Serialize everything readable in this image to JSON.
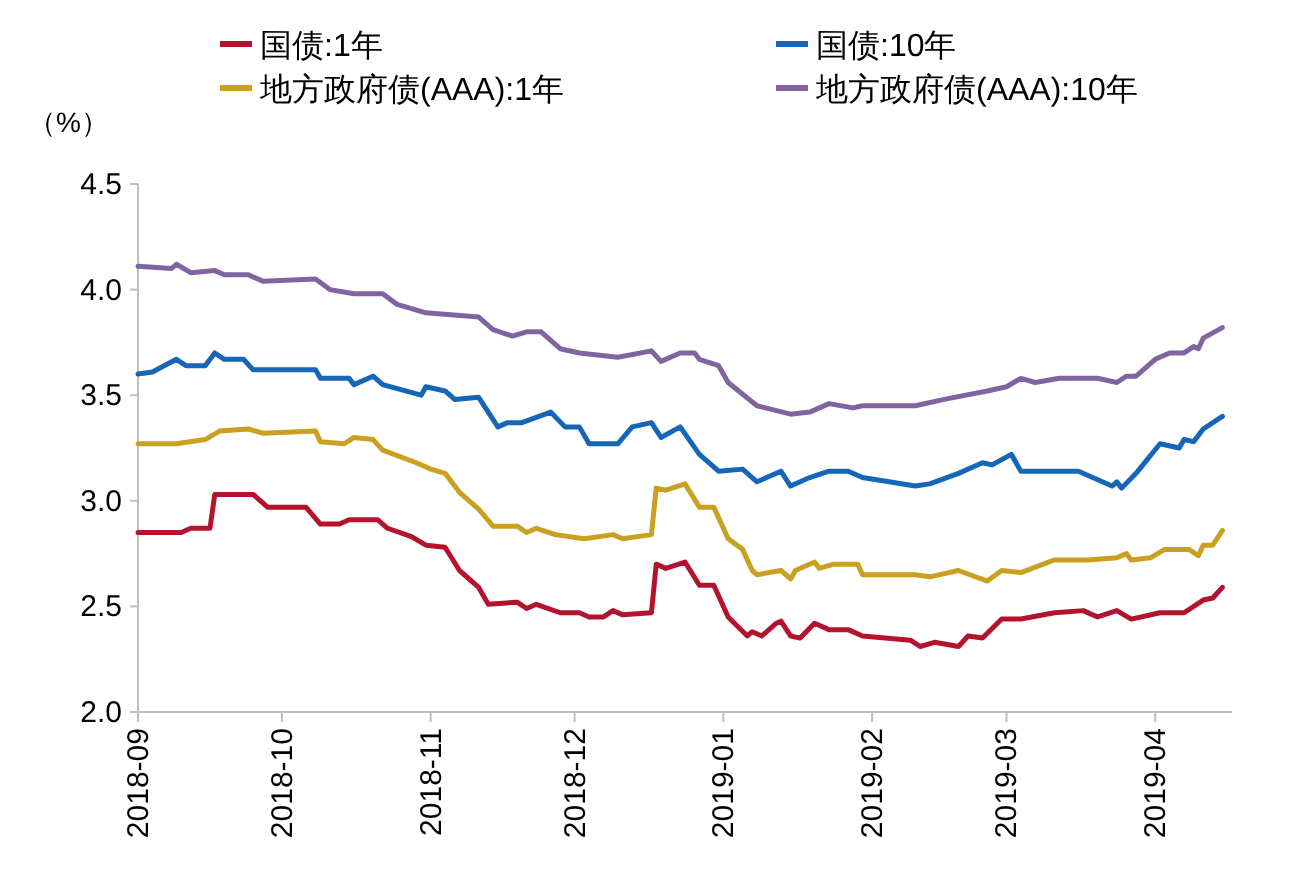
{
  "chart_data": {
    "type": "line",
    "ylabel": "（%）",
    "legend": "top",
    "grid": false,
    "marker": "none",
    "line_style": "solid",
    "xlim": [
      "2018-09-01",
      "2019-04-17"
    ],
    "xticks": [
      "2018-09",
      "2018-10",
      "2018-11",
      "2018-12",
      "2019-01",
      "2019-02",
      "2019-03",
      "2019-04"
    ],
    "ylim": [
      2.0,
      4.5
    ],
    "yticks": [
      {
        "value": 2.0,
        "label": "2.0"
      },
      {
        "value": 2.5,
        "label": "2.5"
      },
      {
        "value": 3.0,
        "label": "3.0"
      },
      {
        "value": 3.5,
        "label": "3.5"
      },
      {
        "value": 4.0,
        "label": "4.0"
      },
      {
        "value": 4.5,
        "label": "4.5"
      }
    ],
    "series": [
      {
        "name": "国债:1年",
        "color": "#b5122e",
        "x": [
          "2018-09-01",
          "2018-09-10",
          "2018-09-12",
          "2018-09-16",
          "2018-09-17",
          "2018-09-25",
          "2018-09-28",
          "2018-10-06",
          "2018-10-09",
          "2018-10-13",
          "2018-10-15",
          "2018-10-21",
          "2018-10-23",
          "2018-10-28",
          "2018-10-31",
          "2018-11-04",
          "2018-11-07",
          "2018-11-11",
          "2018-11-13",
          "2018-11-19",
          "2018-11-21",
          "2018-11-23",
          "2018-11-28",
          "2018-12-02",
          "2018-12-04",
          "2018-12-07",
          "2018-12-09",
          "2018-12-11",
          "2018-12-17",
          "2018-12-18",
          "2018-12-20",
          "2018-12-24",
          "2018-12-27",
          "2018-12-30",
          "2019-01-02",
          "2019-01-06",
          "2019-01-07",
          "2019-01-09",
          "2019-01-12",
          "2019-01-13",
          "2019-01-15",
          "2019-01-17",
          "2019-01-20",
          "2019-01-23",
          "2019-01-27",
          "2019-01-30",
          "2019-02-09",
          "2019-02-11",
          "2019-02-14",
          "2019-02-19",
          "2019-02-21",
          "2019-02-24",
          "2019-02-28",
          "2019-03-04",
          "2019-03-11",
          "2019-03-17",
          "2019-03-20",
          "2019-03-24",
          "2019-03-27",
          "2019-04-02",
          "2019-04-07",
          "2019-04-11",
          "2019-04-13",
          "2019-04-15"
        ],
        "values": [
          2.85,
          2.85,
          2.87,
          2.87,
          3.03,
          3.03,
          2.97,
          2.97,
          2.89,
          2.89,
          2.91,
          2.91,
          2.87,
          2.83,
          2.79,
          2.78,
          2.67,
          2.59,
          2.51,
          2.52,
          2.49,
          2.51,
          2.47,
          2.47,
          2.45,
          2.45,
          2.48,
          2.46,
          2.47,
          2.7,
          2.68,
          2.71,
          2.6,
          2.6,
          2.45,
          2.36,
          2.38,
          2.36,
          2.42,
          2.43,
          2.36,
          2.35,
          2.42,
          2.39,
          2.39,
          2.36,
          2.34,
          2.31,
          2.33,
          2.31,
          2.36,
          2.35,
          2.44,
          2.44,
          2.47,
          2.48,
          2.45,
          2.48,
          2.44,
          2.47,
          2.47,
          2.53,
          2.54,
          2.59
        ]
      },
      {
        "name": "国债:10年",
        "color": "#1565b8",
        "x": [
          "2018-09-01",
          "2018-09-04",
          "2018-09-09",
          "2018-09-11",
          "2018-09-15",
          "2018-09-17",
          "2018-09-19",
          "2018-09-23",
          "2018-09-25",
          "2018-10-08",
          "2018-10-09",
          "2018-10-15",
          "2018-10-16",
          "2018-10-20",
          "2018-10-22",
          "2018-10-30",
          "2018-10-31",
          "2018-11-04",
          "2018-11-06",
          "2018-11-11",
          "2018-11-15",
          "2018-11-17",
          "2018-11-20",
          "2018-11-26",
          "2018-11-29",
          "2018-12-02",
          "2018-12-04",
          "2018-12-10",
          "2018-12-13",
          "2018-12-17",
          "2018-12-19",
          "2018-12-23",
          "2018-12-27",
          "2018-12-31",
          "2019-01-05",
          "2019-01-08",
          "2019-01-13",
          "2019-01-15",
          "2019-01-19",
          "2019-01-23",
          "2019-01-27",
          "2019-01-30",
          "2019-02-10",
          "2019-02-13",
          "2019-02-19",
          "2019-02-24",
          "2019-02-26",
          "2019-03-02",
          "2019-03-04",
          "2019-03-16",
          "2019-03-23",
          "2019-03-24",
          "2019-03-25",
          "2019-03-28",
          "2019-04-02",
          "2019-04-06",
          "2019-04-07",
          "2019-04-09",
          "2019-04-11",
          "2019-04-15"
        ],
        "values": [
          3.6,
          3.61,
          3.67,
          3.64,
          3.64,
          3.7,
          3.67,
          3.67,
          3.62,
          3.62,
          3.58,
          3.58,
          3.55,
          3.59,
          3.55,
          3.5,
          3.54,
          3.52,
          3.48,
          3.49,
          3.35,
          3.37,
          3.37,
          3.42,
          3.35,
          3.35,
          3.27,
          3.27,
          3.35,
          3.37,
          3.3,
          3.35,
          3.22,
          3.14,
          3.15,
          3.09,
          3.14,
          3.07,
          3.11,
          3.14,
          3.14,
          3.11,
          3.07,
          3.08,
          3.13,
          3.18,
          3.17,
          3.22,
          3.14,
          3.14,
          3.07,
          3.09,
          3.06,
          3.13,
          3.27,
          3.25,
          3.29,
          3.28,
          3.34,
          3.4
        ]
      },
      {
        "name": "地方政府债(AAA):1年",
        "color": "#c9a020",
        "x": [
          "2018-09-01",
          "2018-09-09",
          "2018-09-15",
          "2018-09-18",
          "2018-09-24",
          "2018-09-27",
          "2018-10-08",
          "2018-10-09",
          "2018-10-14",
          "2018-10-16",
          "2018-10-20",
          "2018-10-22",
          "2018-10-29",
          "2018-11-01",
          "2018-11-04",
          "2018-11-07",
          "2018-11-11",
          "2018-11-14",
          "2018-11-19",
          "2018-11-21",
          "2018-11-23",
          "2018-11-27",
          "2018-12-03",
          "2018-12-09",
          "2018-12-11",
          "2018-12-17",
          "2018-12-18",
          "2018-12-20",
          "2018-12-24",
          "2018-12-27",
          "2018-12-30",
          "2019-01-02",
          "2019-01-05",
          "2019-01-07",
          "2019-01-08",
          "2019-01-13",
          "2019-01-15",
          "2019-01-16",
          "2019-01-20",
          "2019-01-21",
          "2019-01-24",
          "2019-01-29",
          "2019-01-30",
          "2019-02-10",
          "2019-02-13",
          "2019-02-19",
          "2019-02-25",
          "2019-02-28",
          "2019-03-04",
          "2019-03-11",
          "2019-03-18",
          "2019-03-24",
          "2019-03-26",
          "2019-03-27",
          "2019-03-31",
          "2019-04-03",
          "2019-04-08",
          "2019-04-10",
          "2019-04-11",
          "2019-04-13",
          "2019-04-15"
        ],
        "values": [
          3.27,
          3.27,
          3.29,
          3.33,
          3.34,
          3.32,
          3.33,
          3.28,
          3.27,
          3.3,
          3.29,
          3.24,
          3.18,
          3.15,
          3.13,
          3.04,
          2.96,
          2.88,
          2.88,
          2.85,
          2.87,
          2.84,
          2.82,
          2.84,
          2.82,
          2.84,
          3.06,
          3.05,
          3.08,
          2.97,
          2.97,
          2.82,
          2.77,
          2.67,
          2.65,
          2.67,
          2.63,
          2.67,
          2.71,
          2.68,
          2.7,
          2.7,
          2.65,
          2.65,
          2.64,
          2.67,
          2.62,
          2.67,
          2.66,
          2.72,
          2.72,
          2.73,
          2.75,
          2.72,
          2.73,
          2.77,
          2.77,
          2.74,
          2.79,
          2.79,
          2.86
        ]
      },
      {
        "name": "地方政府债(AAA):10年",
        "color": "#8064a2",
        "x": [
          "2018-09-01",
          "2018-09-08",
          "2018-09-09",
          "2018-09-12",
          "2018-09-17",
          "2018-09-19",
          "2018-09-24",
          "2018-09-27",
          "2018-10-08",
          "2018-10-11",
          "2018-10-16",
          "2018-10-22",
          "2018-10-25",
          "2018-10-31",
          "2018-11-11",
          "2018-11-14",
          "2018-11-18",
          "2018-11-21",
          "2018-11-24",
          "2018-11-28",
          "2018-12-02",
          "2018-12-10",
          "2018-12-17",
          "2018-12-19",
          "2018-12-23",
          "2018-12-26",
          "2018-12-27",
          "2018-12-31",
          "2019-01-02",
          "2019-01-08",
          "2019-01-15",
          "2019-01-19",
          "2019-01-23",
          "2019-01-28",
          "2019-01-30",
          "2019-02-10",
          "2019-02-16",
          "2019-02-25",
          "2019-03-01",
          "2019-03-04",
          "2019-03-07",
          "2019-03-12",
          "2019-03-20",
          "2019-03-24",
          "2019-03-26",
          "2019-03-28",
          "2019-04-01",
          "2019-04-04",
          "2019-04-07",
          "2019-04-09",
          "2019-04-10",
          "2019-04-11",
          "2019-04-15"
        ],
        "values": [
          4.11,
          4.1,
          4.12,
          4.08,
          4.09,
          4.07,
          4.07,
          4.04,
          4.05,
          4.0,
          3.98,
          3.98,
          3.93,
          3.89,
          3.87,
          3.81,
          3.78,
          3.8,
          3.8,
          3.72,
          3.7,
          3.68,
          3.71,
          3.66,
          3.7,
          3.7,
          3.67,
          3.64,
          3.56,
          3.45,
          3.41,
          3.42,
          3.46,
          3.44,
          3.45,
          3.45,
          3.48,
          3.52,
          3.54,
          3.58,
          3.56,
          3.58,
          3.58,
          3.56,
          3.59,
          3.59,
          3.67,
          3.7,
          3.7,
          3.73,
          3.72,
          3.77,
          3.82
        ]
      }
    ]
  }
}
